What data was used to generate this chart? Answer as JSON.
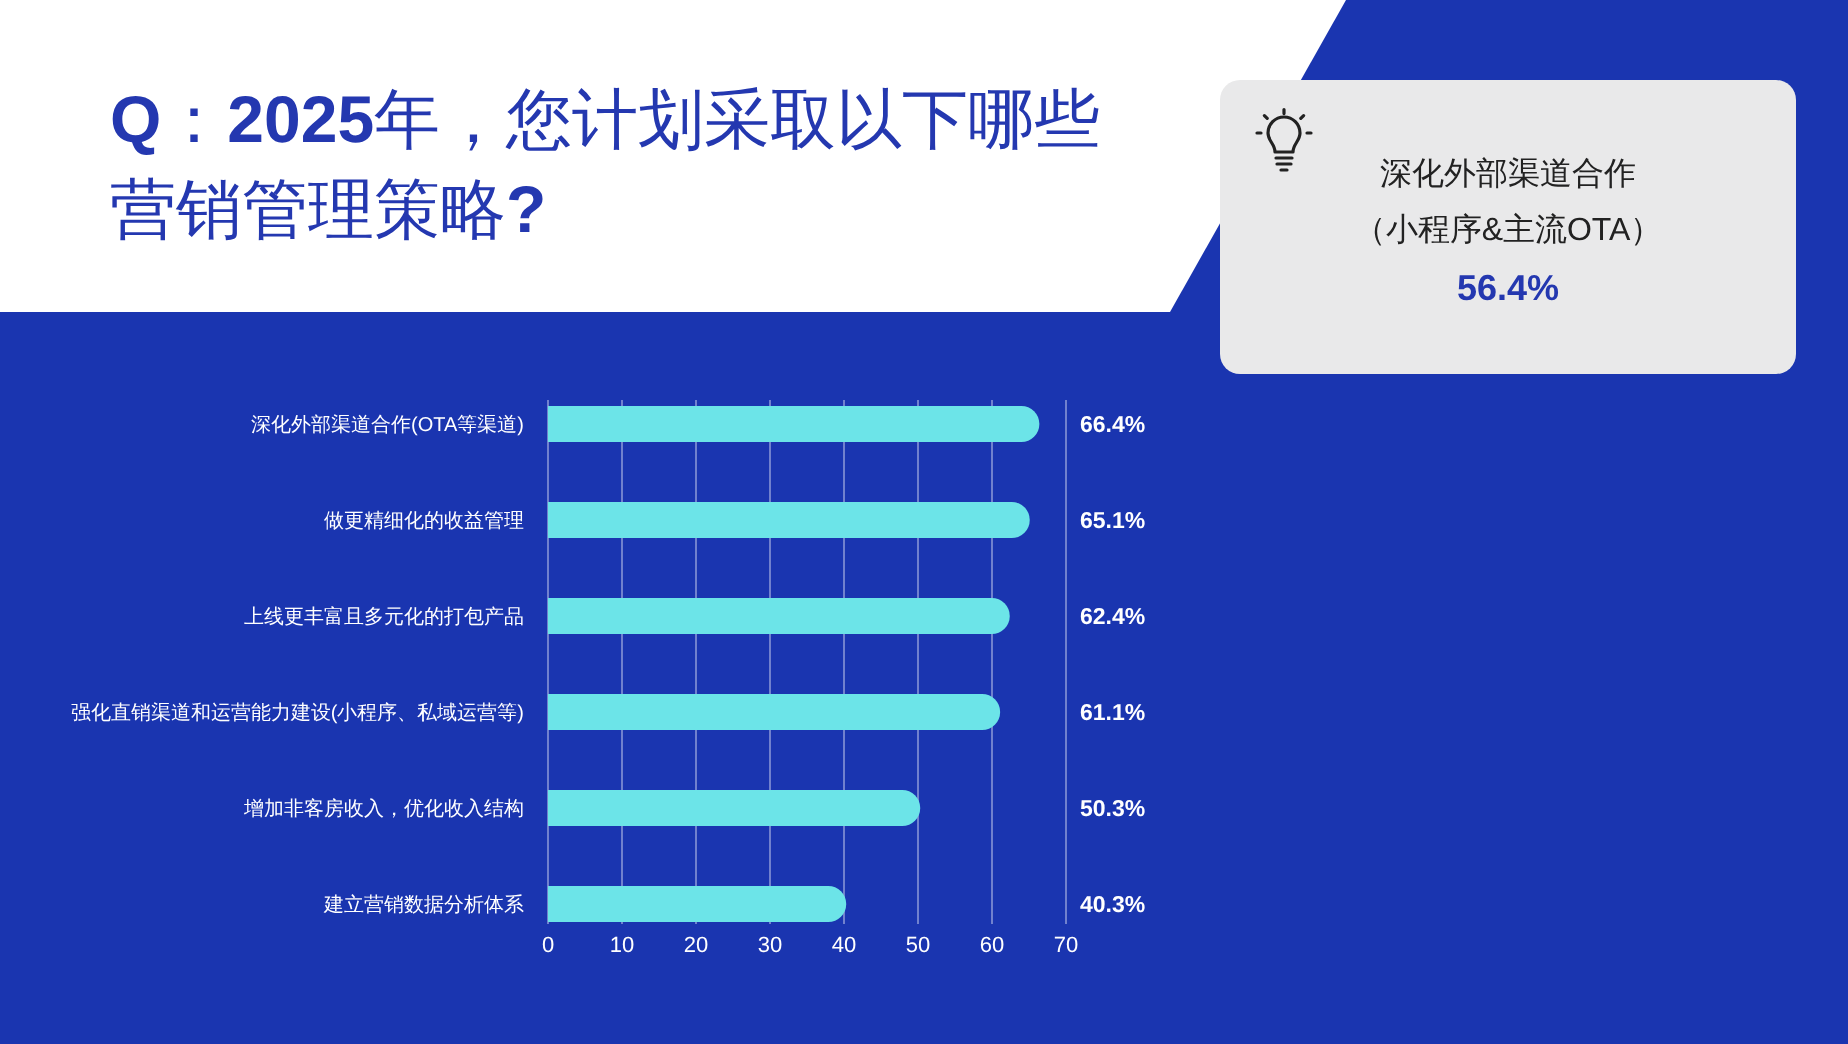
{
  "chart_data": [
    {
      "type": "bar",
      "orientation": "horizontal",
      "title": "Q：2025年，您计划采取以下哪些营销管理策略?",
      "categories": [
        "深化外部渠道合作(OTA等渠道)",
        "做更精细化的收益管理",
        "上线更丰富且多元化的打包产品",
        "强化直销渠道和运营能力建设(小程序、私域运营等)",
        "增加非客房收入，优化收入结构",
        "建立营销数据分析体系"
      ],
      "values": [
        66.4,
        65.1,
        62.4,
        61.1,
        50.3,
        40.3
      ],
      "value_labels": [
        "66.4%",
        "65.1%",
        "62.4%",
        "61.1%",
        "50.3%",
        "40.3%"
      ],
      "color": "#6ce4e8",
      "xlim": [
        0,
        70
      ],
      "xticks": [
        0,
        10,
        20,
        30,
        40,
        50,
        60,
        70
      ],
      "grid": "x"
    },
    {
      "type": "other",
      "title": "深化外部渠道合作",
      "subtitle": "（小程序&主流OTA）",
      "annotations": [
        "56.4%"
      ]
    }
  ]
}
